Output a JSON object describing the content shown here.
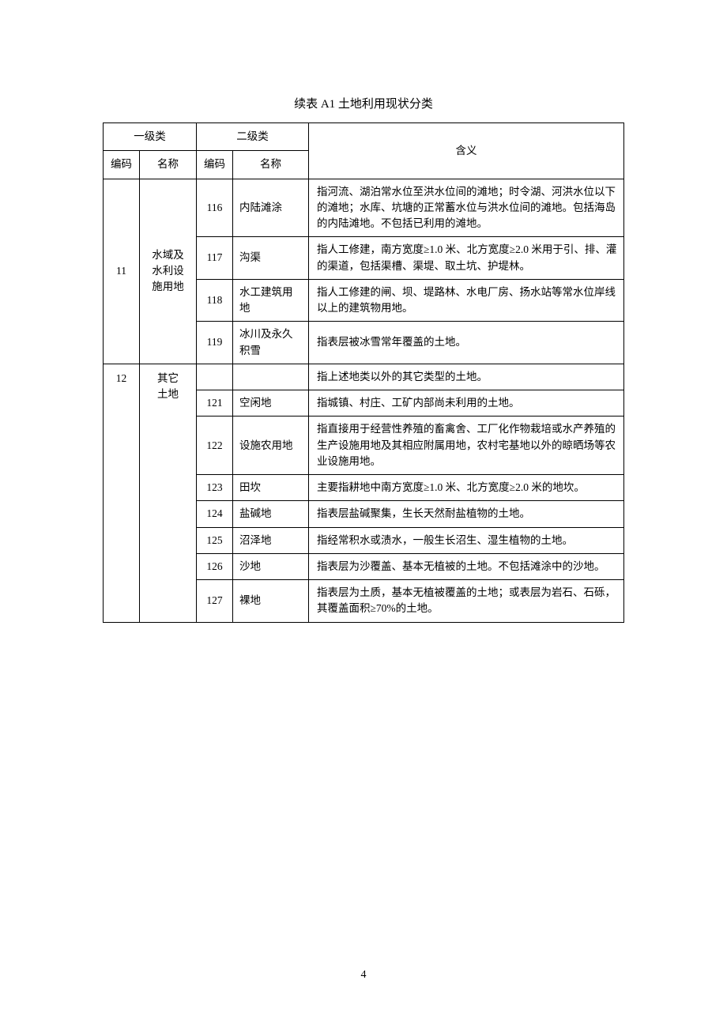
{
  "caption": "续表 A1  土地利用现状分类",
  "page_number": "4",
  "header": {
    "level1": "一级类",
    "level2": "二级类",
    "code": "编码",
    "name": "名称",
    "meaning": "含义"
  },
  "groups": [
    {
      "code1": "11",
      "name1": "水域及\n水利设\n施用地",
      "rows": [
        {
          "code2": "116",
          "name2": "内陆滩涂",
          "meaning": "指河流、湖泊常水位至洪水位间的滩地；时令湖、河洪水位以下的滩地；水库、坑塘的正常蓄水位与洪水位间的滩地。包括海岛的内陆滩地。不包括已利用的滩地。"
        },
        {
          "code2": "117",
          "name2": "沟渠",
          "meaning": "指人工修建，南方宽度≥1.0 米、北方宽度≥2.0 米用于引、排、灌的渠道，包括渠槽、渠堤、取土坑、护堤林。"
        },
        {
          "code2": "118",
          "name2": "水工建筑用地",
          "meaning": "指人工修建的闸、坝、堤路林、水电厂房、扬水站等常水位岸线以上的建筑物用地。"
        },
        {
          "code2": "119",
          "name2": "冰川及永久积雪",
          "meaning": "指表层被冰雪常年覆盖的土地。"
        }
      ]
    },
    {
      "code1": "12",
      "name1": "其它\n土地",
      "rows": [
        {
          "code2": "",
          "name2": "",
          "meaning": "指上述地类以外的其它类型的土地。"
        },
        {
          "code2": "121",
          "name2": "空闲地",
          "meaning": "指城镇、村庄、工矿内部尚未利用的土地。"
        },
        {
          "code2": "122",
          "name2": "设施农用地",
          "meaning": "指直接用于经营性养殖的畜禽舍、工厂化作物栽培或水产养殖的生产设施用地及其相应附属用地，农村宅基地以外的晾晒场等农业设施用地。"
        },
        {
          "code2": "123",
          "name2": "田坎",
          "meaning": "主要指耕地中南方宽度≥1.0 米、北方宽度≥2.0 米的地坎。"
        },
        {
          "code2": "124",
          "name2": "盐碱地",
          "meaning": "指表层盐碱聚集，生长天然耐盐植物的土地。"
        },
        {
          "code2": "125",
          "name2": "沼泽地",
          "meaning": "指经常积水或渍水，一般生长沼生、湿生植物的土地。"
        },
        {
          "code2": "126",
          "name2": "沙地",
          "meaning": "指表层为沙覆盖、基本无植被的土地。不包括滩涂中的沙地。"
        },
        {
          "code2": "127",
          "name2": "裸地",
          "meaning": "指表层为土质，基本无植被覆盖的土地；或表层为岩石、石砾，其覆盖面积≥70%的土地。"
        }
      ]
    }
  ]
}
